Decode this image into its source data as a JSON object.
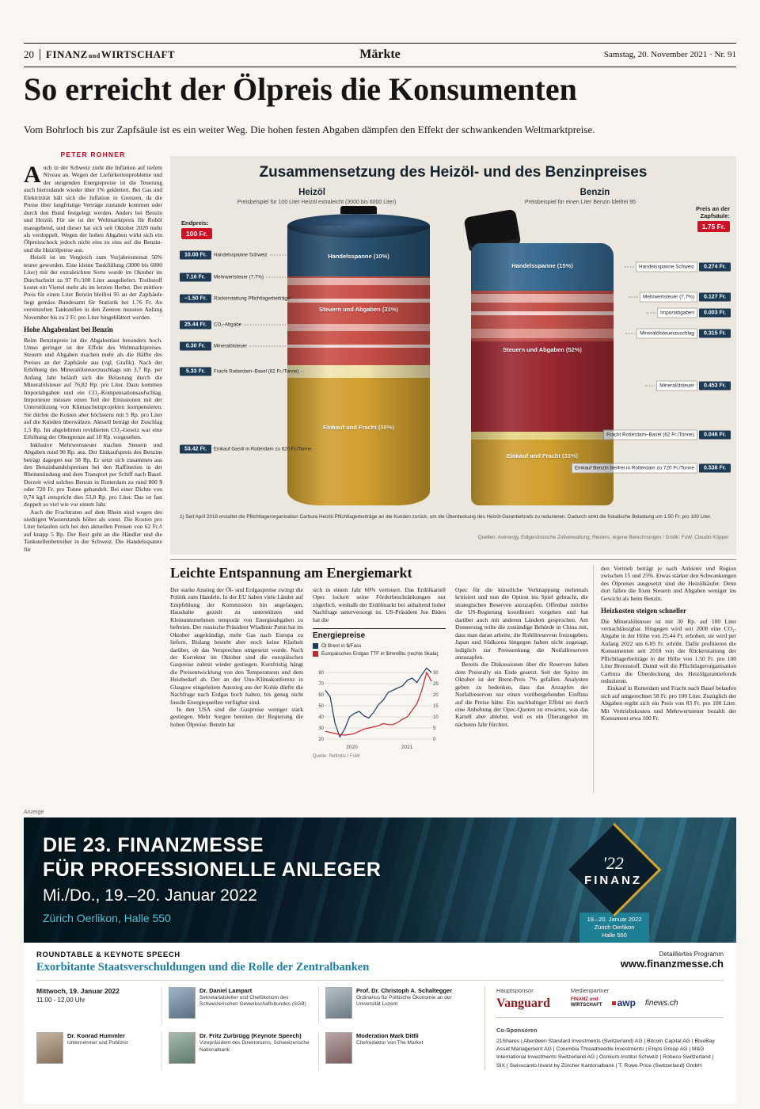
{
  "header": {
    "page_number": "20",
    "masthead_1": "FINANZ",
    "masthead_und": "und",
    "masthead_2": "WIRTSCHAFT",
    "section": "Märkte",
    "date": "Samstag, 20. November 2021 · Nr. 91"
  },
  "article1": {
    "headline": "So erreicht der Ölpreis die Konsumenten",
    "lede": "Vom Bohrloch bis zur Zapfsäule ist es ein weiter Weg. Die hohen festen Abgaben dämpfen den Effekt der schwankenden Weltmarktpreise.",
    "byline": "PETER ROHNER",
    "dropcap": "A",
    "p1": "uch in der Schweiz zieht die Inflation auf tiefem Niveau an. Wegen der Lieferkettenprobleme und der steigenden Energiepreise ist die Teuerung auch hierzulande wieder über 1% geklettert. Bei Gas und Elektrizität hält sich die Inflation in Grenzen, da die Preise über langfristige Verträge zustande kommen oder durch den Bund festgelegt werden. Anders bei Benzin und Heizöl. Für sie ist der Weltmarktpreis für Rohöl massgebend, und dieser hat sich seit Oktober 2020 mehr als verdoppelt. Wegen der hohen Abgaben wirkt sich ein Ölpreisschock jedoch nicht eins zu eins auf die Benzin- und die Heizölpreise aus.",
    "p2": "Heizöl ist im Vergleich zum Vorjahresmonat 50% teurer geworden. Eine kleine Tankfüllung (3000 bis 6000 Liter) mit der extraleichten Sorte wurde im Oktober im Durchschnitt zu 97 Fr./100 Liter ausgeliefert. Treibstoff kostet ein Viertel mehr als im letzten Herbst. Der mittlere Preis für einen Liter Benzin bleifrei 95 an der Zapfsäule liegt gemäss Bundesamt für Statistik bei 1.76 Fr. An vereinzelten Tankstellen in den Zentren mussten Anfang November bis zu 2 Fr. pro Liter hingeblättert werden.",
    "subhead1": "Hohe Abgabenlast bei Benzin",
    "p3": "Beim Benzinpreis ist die Abgabenlast besonders hoch. Umso geringer ist der Effekt des Weltmarktpreises. Steuern und Abgaben machen mehr als die Hälfte des Preises an der Zapfsäule aus (vgl. Grafik). Nach der Erhöhung des Mineralölsteuerzuschlags um 3,7 Rp. per Anfang Jahr beläuft sich die Belastung durch die Mineralölsteuer auf 76,82 Rp. pro Liter. Dazu kommen Importabgaben und ein CO₂-Kompensationsaufschlag. Importeure müssen einen Teil der Emissionen mit der Unterstützung von Klimaschutzprojekten kompensieren. Sie dürfen die Kosten aber höchstens mit 5 Rp. pro Liter auf die Kunden überwälzen. Aktuell beträgt der Zuschlag 1,5 Rp. Im abgelehnten revidierten CO₂-Gesetz war eine Erhöhung der Obergrenze auf 10 Rp. vorgesehen.",
    "p4": "Inklusive Mehrwertsteuer machen Steuern und Abgaben rund 90 Rp. aus. Der Einkaufspreis des Benzins beträgt dagegen nur 58 Rp. Er setzt sich zusammen aus den Benzinhandelspreisen bei den Raffinerien in der Rheinmündung und dem Transport per Schiff nach Basel. Derzeit wird solches Benzin in Rotterdam zu rund 800 $ oder 720 Fr. pro Tonne gehandelt. Bei einer Dichte von 0,74 kg/l entspricht dies 53,8 Rp. pro Liter. Das ist fast doppelt so viel wie vor einem Jahr.",
    "p5": "Auch die Frachtraten auf dem Rhein sind wegen des niedrigen Wasserstands höher als sonst. Die Kosten pro Liter belaufen sich bei den aktuellen Preisen von 62 Fr./t auf knapp 5 Rp. Der Rest geht an die Händler und die Tankstellenbetreiber in der Schweiz. Die Handelsspanne für"
  },
  "graphic": {
    "title": "Zusammensetzung des Heizöl- und des Benzinpreises",
    "heizoel": {
      "name": "Heizöl",
      "subtitle": "Preisbeispiel für 100 Liter Heizöl extraleicht (3000 bis 6000 Liter)",
      "endpreis_label": "Endpreis:",
      "endpreis": "100 Fr.",
      "seg_handelsspanne": "Handelsspanne (10%)",
      "seg_steuern": "Steuern und Abgaben (31%)",
      "seg_einkauf": "Einkauf und Fracht (59%)",
      "rows": [
        {
          "value": "10.00 Fr.",
          "label": "Handelsspanne Schweiz"
        },
        {
          "value": "7.16 Fr.",
          "label": "Mehrwertsteuer (7,7%)"
        },
        {
          "value": "−1.50 Fr.",
          "label": "Rückerstattung Pflichtlagerbeiträge¹⁾"
        },
        {
          "value": "25.44 Fr.",
          "label": "CO₂-Abgabe"
        },
        {
          "value": "0.30 Fr.",
          "label": "Mineralölsteuer"
        },
        {
          "value": "5.33 Fr.",
          "label": "Fracht Rotterdam–Basel (62 Fr./Tonne)"
        },
        {
          "value": "53.42 Fr.",
          "label": "Einkauf Gasöl in Rotterdam zu 620 Fr./Tonne"
        }
      ]
    },
    "benzin": {
      "name": "Benzin",
      "subtitle": "Preisbeispiel für einen Liter Benzin bleifrei 95",
      "endpreis_label": "Preis an der Zapfsäule:",
      "endpreis": "1.75 Fr.",
      "seg_handelsspanne": "Handelsspanne (15%)",
      "seg_steuern": "Steuern und Abgaben (52%)",
      "seg_einkauf": "Einkauf und Fracht (33%)",
      "rows": [
        {
          "label": "Handelsspanne Schweiz",
          "value": "0.274 Fr."
        },
        {
          "label": "Mehrwertsteuer (7,7%)",
          "value": "0.127 Fr."
        },
        {
          "label": "Importabgaben",
          "value": "0.003 Fr."
        },
        {
          "label": "Mineralölsteuerzuschlag",
          "value": "0.315 Fr."
        },
        {
          "label": "Mineralölsteuer",
          "value": "0.453 Fr."
        },
        {
          "label": "Fracht Rotterdam–Basel (62 Fr./Tonne)",
          "value": "0.046 Fr."
        },
        {
          "label": "Einkauf Benzin bleifrei in Rotterdam zu 720 Fr./Tonne",
          "value": "0.538 Fr."
        }
      ]
    },
    "footnote": "1) Seit April 2018 erstattet die Pflichtlagerorganisation Carbura Heizöl-Pflichtlagerbeiträge an die Kunden zurück, um die Überdeckung des Heizöl-Garantiefonds zu reduzieren. Dadurch sinkt die fiskalische Belastung um 1.50 Fr. pro 100 Liter.",
    "source": "Quellen: Avenergy, Eidgenössische Zollverwaltung, Reuters, eigene Berechnungen / Grafik: FuW, Claudio Köppel"
  },
  "article2": {
    "headline": "Leichte Entspannung am Energiemarkt",
    "col1_p1": "Der starke Anstieg der Öl- und Erdgaspreise zwingt die Politik zum Handeln. In der EU haben viele Länder auf Empfehlung der Kommission hin angefangen, Haushalte gezielt zu unterstützen und Kleinunternehmen temporär von Energieabgaben zu befreien. Der russische Präsident Wladimir Putin hat im Oktober angekündigt, mehr Gas nach Europa zu liefern. Bislang besteht aber noch keine Klarheit darüber, ob das Versprechen umgesetzt wurde. Nach der Korrektur im Oktober sind die europäischen Gaspreise zuletzt wieder gestiegen. Kurzfristig hängt die Preisentwicklung von den Temperaturen und dem Heizbedarf ab. Der an der Uno-Klimakonferenz in Glasgow eingeleitete Ausstieg aus der Kohle dürfte die Nachfrage nach Erdgas hoch halten, bis genug nicht fossile Energiequellen verfügbar sind.",
    "col1_p2": "In den USA sind die Gaspreise weniger stark gestiegen. Mehr Sorgen bereiten der Regierung die hohen Ölpreise. Benzin hat",
    "col2_p1": "sich in einem Jahr 60% verteuert. Das Erdölkartell Opec lockert seine Förderbeschränkungen nur zögerlich, weshalb der Erdölmarkt bei anhaltend hoher Nachfrage unterversorgt ist. US-Präsident Joe Biden hat die",
    "col3_p1": "Opec für die künstliche Verknappung mehrmals kritisiert und nun die Option ins Spiel gebracht, die strategischen Reserven anzuzapfen. Offenbar möchte die US-Regierung koordiniert vorgehen und hat darüber auch mit anderen Ländern gesprochen. Am Donnerstag teilte die zuständige Behörde in China mit, dass man daran arbeite, die Rohölreserven freizugeben. Japan und Südkorea hingegen haben nicht zugesagt, lediglich zur Preissenkung die Notfallreserven anzuzapfen.",
    "col3_p2": "Bereits die Diskussionen über die Reserven haben dem Preisrally ein Ende gesetzt. Seit der Spitze im Oktober ist der Brent-Preis 7% gefallen. Analysten geben zu bedenken, dass das Anzapfen der Notfallreserven nur einen vorübergehenden Einfluss auf die Preise hätte. Ein nachhaltiger Effekt sei durch eine Anhebung der Opec-Quoten zu erwarten, was das Kartell aber ablehnt, weil es ein Überangebot im nächsten Jahr fürchtet."
  },
  "chart": {
    "title": "Energiepreise",
    "source": "Quelle: Refinitiv / FuW"
  },
  "chart_data": {
    "type": "line",
    "title": "Energiepreise",
    "x_ticks": [
      {
        "label": "2020",
        "pos": 0.25
      },
      {
        "label": "2021",
        "pos": 0.77
      }
    ],
    "left_axis": {
      "ticks": [
        20,
        30,
        40,
        50,
        60,
        70,
        80
      ]
    },
    "right_axis": {
      "ticks": [
        0,
        5,
        10,
        15,
        20,
        25,
        30
      ]
    },
    "series": [
      {
        "name": "Öl Brent in $/Fass",
        "axis": "left",
        "color": "#1d3a5c",
        "values": [
          64,
          58,
          34,
          22,
          29,
          40,
          43,
          45,
          41,
          39,
          44,
          51,
          55,
          62,
          64,
          66,
          68,
          73,
          75,
          71,
          78,
          84,
          80
        ]
      },
      {
        "name": "Europäisches Erdgas TTF in $/mmBtu (rechte Skala)",
        "axis": "right",
        "color": "#c9232d",
        "values": [
          3.5,
          3,
          2.5,
          2,
          1.8,
          2,
          2.5,
          3.5,
          4.5,
          5,
          5.5,
          6,
          7,
          6.5,
          6.5,
          7.5,
          9,
          10,
          13,
          16,
          22,
          30,
          26
        ]
      }
    ],
    "legend_position": "top",
    "grid": true
  },
  "article1cont": {
    "p6": "den Vertrieb beträgt je nach Anbieter und Region zwischen 15 und 25%. Etwas stärker den Schwankungen des Ölpreises ausgesetzt sind die Heizölkäufer. Denn dort fallen die fixen Steuern und Abgaben weniger ins Gewicht als beim Benzin.",
    "subhead2": "Heizkosten steigen schneller",
    "p7": "Die Mineralölsteuer ist mit 30 Rp. auf 100 Liter vernachlässigbar. Hingegen wird seit 2008 eine CO₂-Abgabe in der Höhe von 25.44 Fr. erhoben, sie wird per Anfang 2022 um 6.85 Fr. erhöht. Dafür profitieren die Konsumenten seit 2018 von der Rückerstattung der Pflichtlagerbeiträge in der Höhe von 1.50 Fr. pro 100 Liter Brennstoff. Damit will die Pflichtlagerorganisation Carbura die Überdeckung des Heizölgarantiefonds reduzieren.",
    "p8": "Einkauf in Rotterdam und Fracht nach Basel belaufen sich auf umgerechnet 58 Fr. pro 100 Liter. Zuzüglich der Abgaben ergibt sich ein Preis von 83 Fr. pro 100 Liter. Mit Vertriebskosten und Mehrwertsteuer bezahlt der Konsument etwa 100 Fr."
  },
  "ad": {
    "anzeige": "Anzeige",
    "line1": "DIE 23. FINANZMESSE",
    "line2": "FÜR PROFESSIONELLE ANLEGER",
    "line3": "Mi./Do., 19.–20. Januar 2022",
    "line4": "Zürich Oerlikon, Halle 550",
    "logo_tick": "'22",
    "logo_name": "FINANZ",
    "logo_sub1": "19.–20. Januar 2022",
    "logo_sub2": "Zürich Oerlikon",
    "logo_sub3": "Halle 550",
    "roundtable": "ROUNDTABLE & KEYNOTE SPEECH",
    "topic": "Exorbitante Staatsverschuldungen und die Rolle der Zentralbanken",
    "program_label": "Detailliertes Programm",
    "program_url": "www.finanzmesse.ch",
    "when_date": "Mittwoch, 19. Januar 2022",
    "when_time": "11.00 - 12.00 Uhr",
    "speakers": [
      {
        "name": "Dr. Daniel Lampart",
        "role": "Sekretariatsleiter und Chefökonom des Schweizerischen Gewerkschaftsbundes (SGB)"
      },
      {
        "name": "Prof. Dr. Christoph A. Schaltegger",
        "role": "Ordinarius für Politische Ökonomie an der Universität Luzern"
      },
      {
        "name": "Dr. Konrad Hummler",
        "role": "Unternehmer und Publizist"
      },
      {
        "name": "Dr. Fritz Zurbrügg (Keynote Speech)",
        "role": "Vizepräsident des Direktoriums, Schweizerische Nationalbank"
      },
      {
        "name": "Moderation Mark Dittli",
        "role": "Chefredaktor von The Market"
      }
    ],
    "hauptsponsor_label": "Hauptsponsor",
    "hauptsponsor": "Vanguard",
    "medienpartner_label": "Medienpartner",
    "partner_fuw_1": "FINANZ und",
    "partner_fuw_2": "WIRTSCHAFT",
    "partner_awp": "awp",
    "partner_finews": "finews.ch",
    "cosponsors_label": "Co-Sponsoren",
    "cosponsors": "21Shares | Aberdeen Standard Investments (Switzerland) AG | Bitcoin Capital AG | BlueBay Asset Management AG | Columbia Threadneedle Investments | Etops Group AG | M&G International Investments Switzerland AG | Osmium-Institut Schweiz | Robeco Switzerland | SIX | Swisscanto Invest by Zürcher Kantonalbank | T. Rowe Price (Switzerland) GmbH"
  }
}
